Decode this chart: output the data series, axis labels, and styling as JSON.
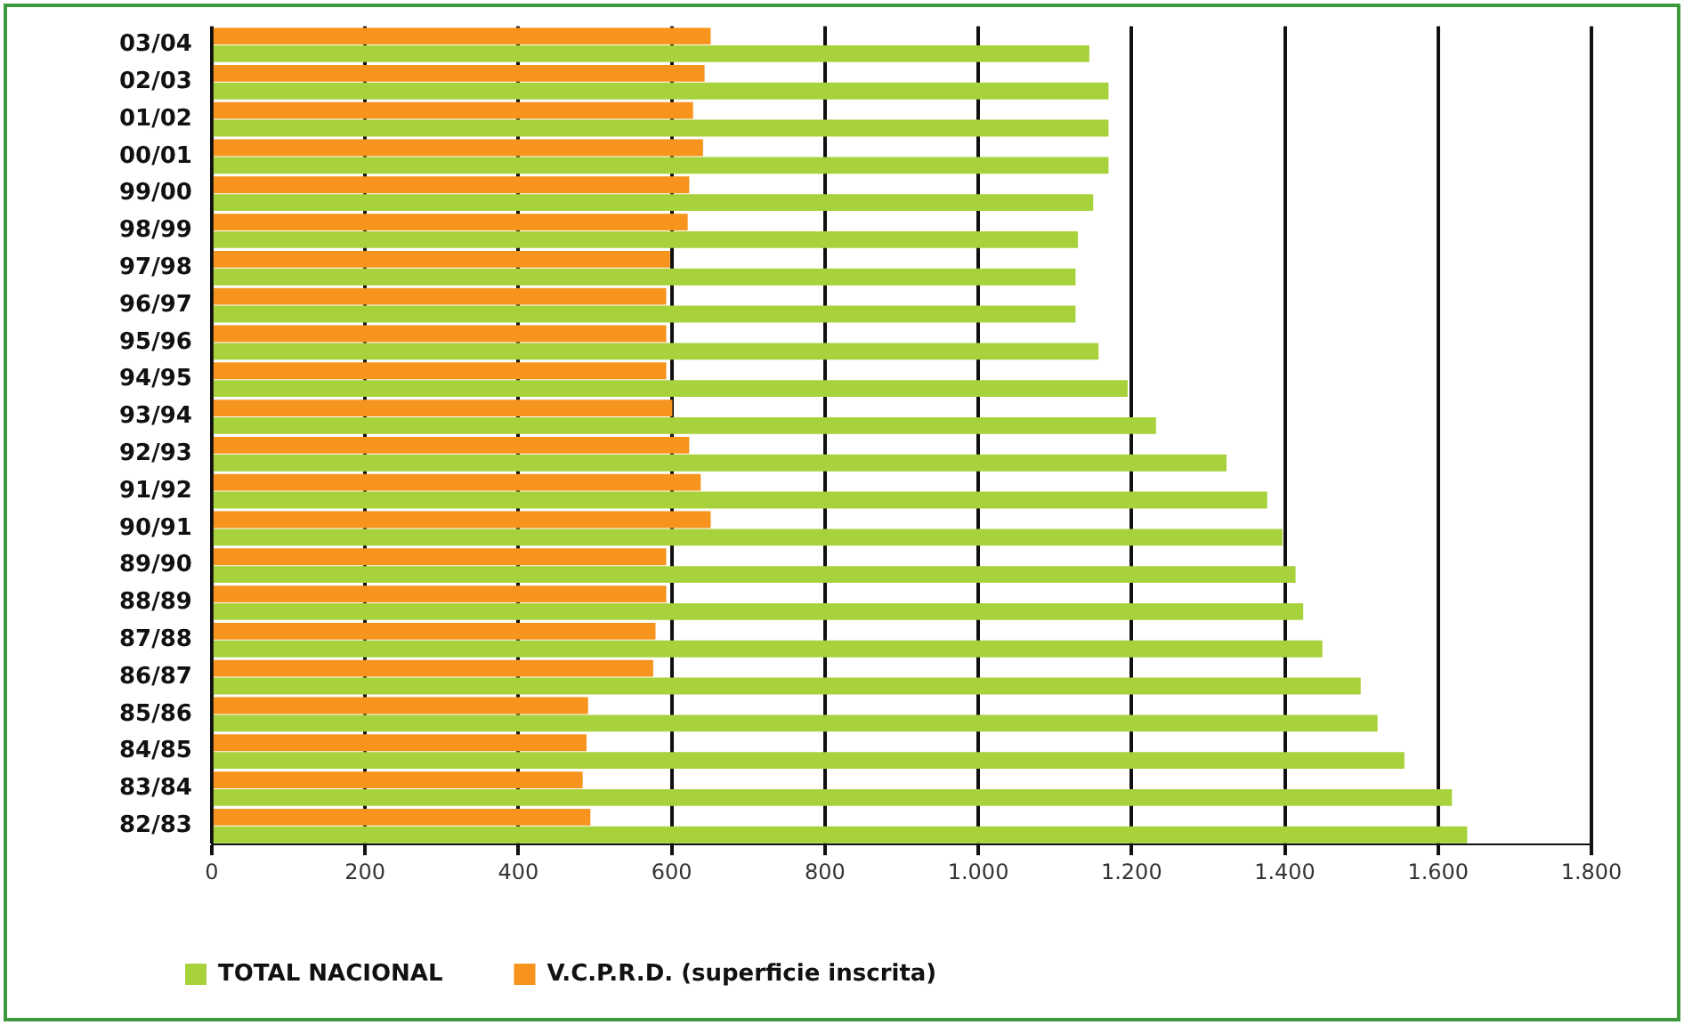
{
  "chart_data": {
    "type": "bar",
    "orientation": "horizontal",
    "categories": [
      "03/04",
      "02/03",
      "01/02",
      "00/01",
      "99/00",
      "98/99",
      "97/98",
      "96/97",
      "95/96",
      "94/95",
      "93/94",
      "92/93",
      "91/92",
      "90/91",
      "89/90",
      "88/89",
      "87/88",
      "86/87",
      "85/86",
      "84/85",
      "83/84",
      "82/83"
    ],
    "series": [
      {
        "name": "V.C.P.R.D. (superficie inscrita)",
        "color": "#f7941d",
        "values": [
          651,
          643,
          628,
          641,
          623,
          621,
          598,
          593,
          593,
          593,
          601,
          623,
          638,
          651,
          593,
          593,
          579,
          576,
          491,
          489,
          484,
          494
        ]
      },
      {
        "name": "TOTAL NACIONAL",
        "color": "#a8d23c",
        "values": [
          1145,
          1170,
          1170,
          1170,
          1150,
          1130,
          1127,
          1127,
          1157,
          1195,
          1232,
          1324,
          1377,
          1397,
          1414,
          1424,
          1449,
          1499,
          1521,
          1556,
          1618,
          1638
        ]
      }
    ],
    "xlim": [
      0,
      1800
    ],
    "xticks": [
      0,
      200,
      400,
      600,
      800,
      {
        "value": 1000,
        "label": "1.000"
      },
      {
        "value": 1200,
        "label": "1.200"
      },
      {
        "value": 1400,
        "label": "1.400"
      },
      {
        "value": 1600,
        "label": "1.600"
      },
      {
        "value": 1800,
        "label": "1.800"
      }
    ],
    "grid": "x",
    "legend": "bottom"
  }
}
